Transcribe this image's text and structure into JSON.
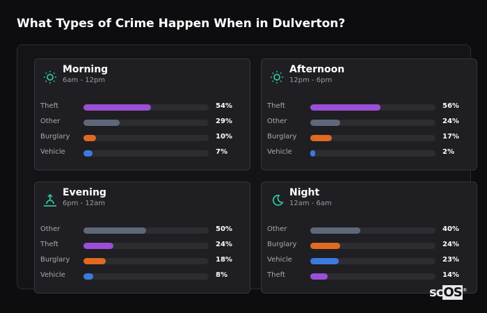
{
  "title": "What Types of Crime Happen When in Dulverton?",
  "colors": {
    "Theft": "#9b4fd6",
    "Other": "#5f6878",
    "Burglary": "#e06a1f",
    "Vehicle": "#3b7be0",
    "accent": "#2fc49a"
  },
  "periods": [
    {
      "name": "Morning",
      "hours": "6am - 12pm",
      "icon": "sun-icon",
      "rows": [
        {
          "label": "Theft",
          "value": "54%",
          "pct": 54
        },
        {
          "label": "Other",
          "value": "29%",
          "pct": 29
        },
        {
          "label": "Burglary",
          "value": "10%",
          "pct": 10
        },
        {
          "label": "Vehicle",
          "value": "7%",
          "pct": 7
        }
      ]
    },
    {
      "name": "Afternoon",
      "hours": "12pm - 6pm",
      "icon": "sun-icon",
      "rows": [
        {
          "label": "Theft",
          "value": "56%",
          "pct": 56
        },
        {
          "label": "Other",
          "value": "24%",
          "pct": 24
        },
        {
          "label": "Burglary",
          "value": "17%",
          "pct": 17
        },
        {
          "label": "Vehicle",
          "value": "2%",
          "pct": 2
        }
      ]
    },
    {
      "name": "Evening",
      "hours": "6pm - 12am",
      "icon": "sunset-icon",
      "rows": [
        {
          "label": "Other",
          "value": "50%",
          "pct": 50
        },
        {
          "label": "Theft",
          "value": "24%",
          "pct": 24
        },
        {
          "label": "Burglary",
          "value": "18%",
          "pct": 18
        },
        {
          "label": "Vehicle",
          "value": "8%",
          "pct": 8
        }
      ]
    },
    {
      "name": "Night",
      "hours": "12am - 6am",
      "icon": "moon-icon",
      "rows": [
        {
          "label": "Other",
          "value": "40%",
          "pct": 40
        },
        {
          "label": "Burglary",
          "value": "24%",
          "pct": 24
        },
        {
          "label": "Vehicle",
          "value": "23%",
          "pct": 23
        },
        {
          "label": "Theft",
          "value": "14%",
          "pct": 14
        }
      ]
    }
  ],
  "logo": "scOS"
}
